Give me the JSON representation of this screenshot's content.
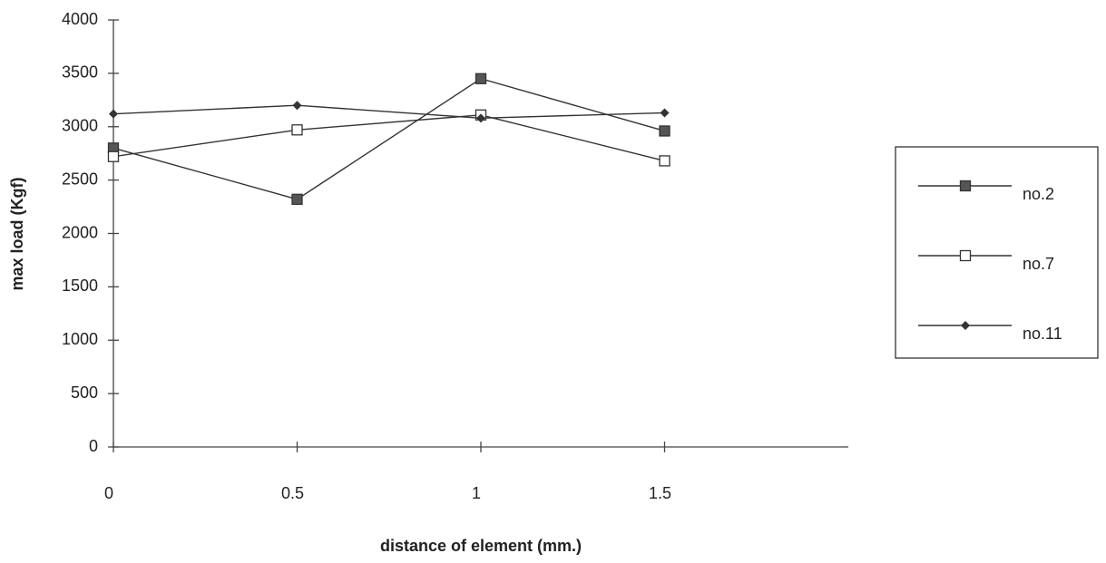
{
  "chart_data": {
    "type": "line",
    "x_label": "distance of element (mm.)",
    "y_label": "max load (Kgf)",
    "x": [
      0,
      0.5,
      1,
      1.5
    ],
    "series": [
      {
        "name": "no.2",
        "color": "#333333",
        "marker": "filled-square",
        "values": [
          2800,
          2320,
          3450,
          2960
        ]
      },
      {
        "name": "no.7",
        "color": "#333333",
        "marker": "open-square",
        "values": [
          2720,
          2970,
          3110,
          2680
        ]
      },
      {
        "name": "no.11",
        "color": "#333333",
        "marker": "diamond",
        "values": [
          3120,
          3200,
          3080,
          3130
        ]
      }
    ],
    "xlim": [
      0,
      2
    ],
    "xticks": [
      0,
      0.5,
      1,
      1.5
    ],
    "ylim": [
      0,
      4000
    ],
    "yticks": [
      0,
      500,
      1000,
      1500,
      2000,
      2500,
      3000,
      3500,
      4000
    ],
    "grid": false,
    "legend": "right"
  }
}
